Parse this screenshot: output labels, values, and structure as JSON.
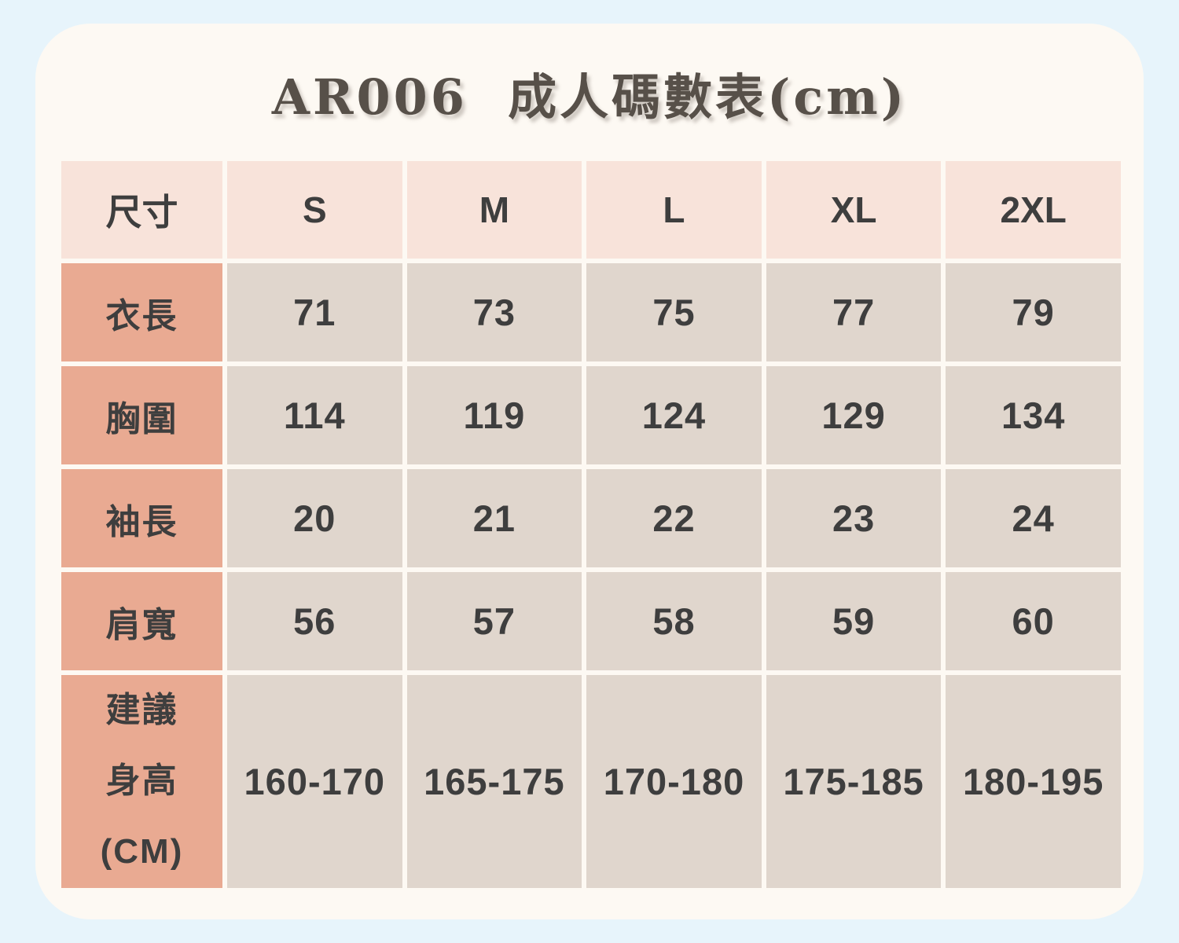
{
  "page": {
    "title": "AR006  成人碼數表(cm)"
  },
  "colors": {
    "background": "#e7f4fb",
    "card": "#fdf9f3",
    "header_cell": "#f8e3da",
    "label_cell": "#e9aa92",
    "data_cell": "#e0d6cd",
    "text": "#3e3e3e",
    "title_text": "#575049"
  },
  "chart_data": {
    "type": "table",
    "title": "AR006 成人碼數表(cm)",
    "unit": "cm",
    "columns": [
      "尺寸",
      "S",
      "M",
      "L",
      "XL",
      "2XL"
    ],
    "rows": [
      {
        "label": "衣長",
        "values": [
          "71",
          "73",
          "75",
          "77",
          "79"
        ]
      },
      {
        "label": "胸圍",
        "values": [
          "114",
          "119",
          "124",
          "129",
          "134"
        ]
      },
      {
        "label": "袖長",
        "values": [
          "20",
          "21",
          "22",
          "23",
          "24"
        ]
      },
      {
        "label": "肩寬",
        "values": [
          "56",
          "57",
          "58",
          "59",
          "60"
        ]
      },
      {
        "label": "建議身高(CM)",
        "label_lines": [
          "建議",
          "身高",
          "(CM)"
        ],
        "values": [
          "160-170",
          "165-175",
          "170-180",
          "175-185",
          "180-195"
        ]
      }
    ]
  }
}
